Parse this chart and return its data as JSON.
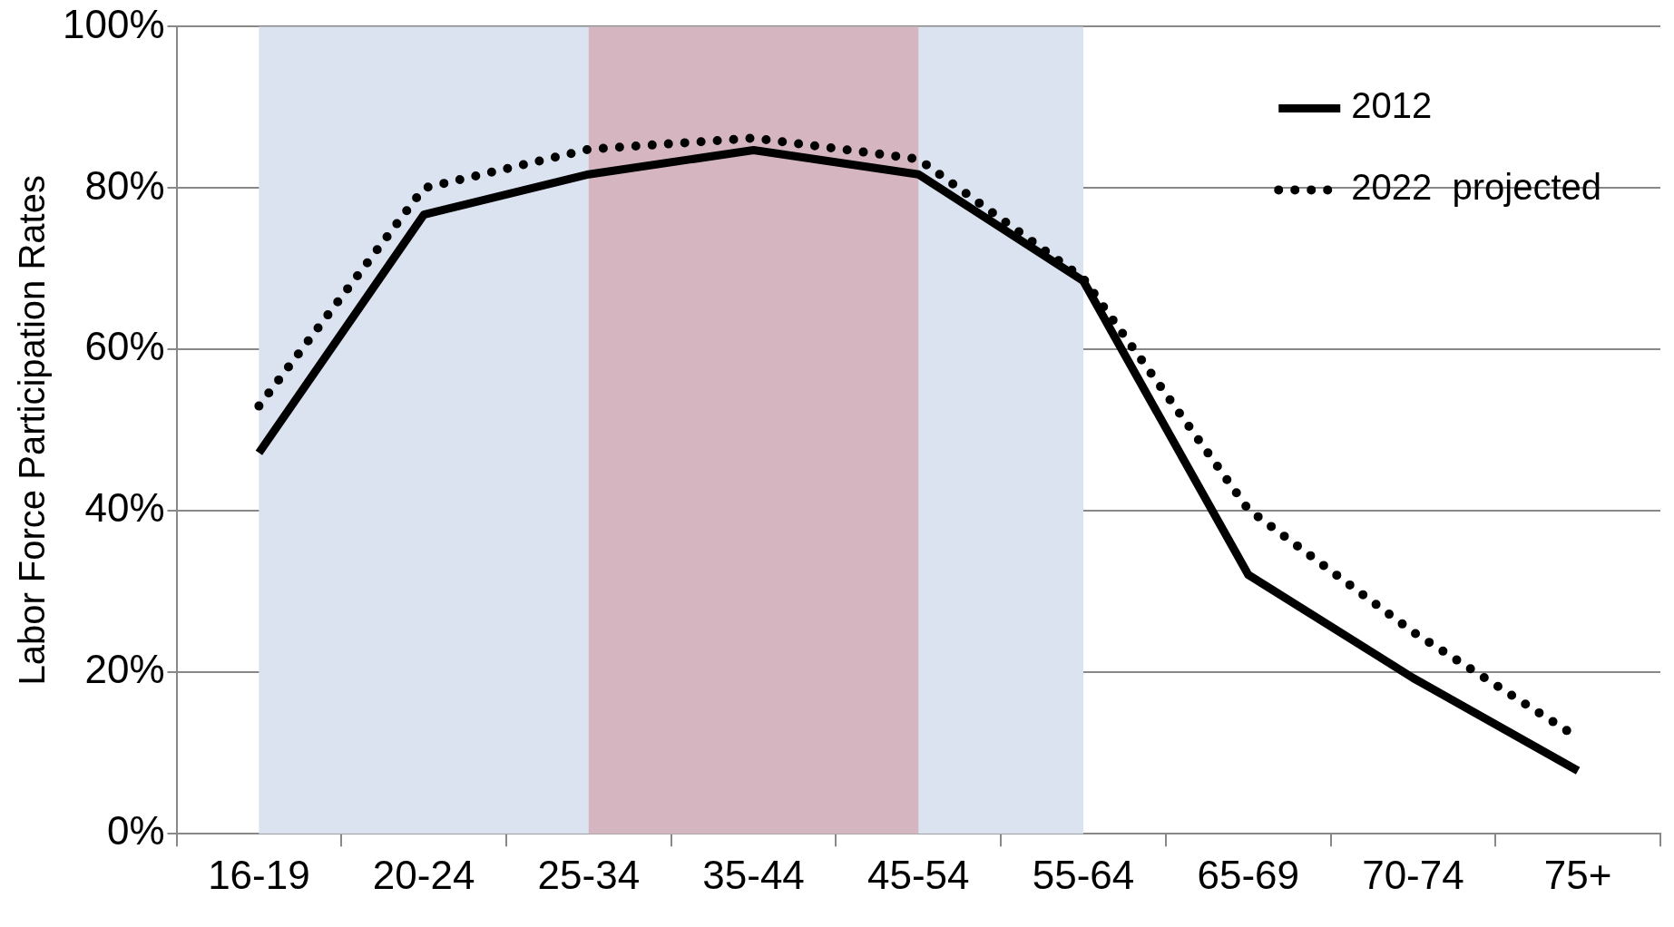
{
  "chart_data": {
    "type": "line",
    "ylabel": "Labor Force Participation Rates",
    "categories": [
      "16-19",
      "20-24",
      "25-34",
      "35-44",
      "45-54",
      "55-64",
      "65-69",
      "70-74",
      "75+"
    ],
    "series": [
      {
        "name": "2012",
        "color": "#000000",
        "line_style": "solid",
        "values": [
          47.2,
          76.7,
          81.7,
          84.7,
          81.7,
          68.5,
          32.1,
          19.3,
          7.8
        ]
      },
      {
        "name": "2022  projected",
        "color": "#000000",
        "line_style": "dotted",
        "values": [
          53.0,
          80.0,
          84.8,
          86.2,
          83.6,
          68.8,
          40.2,
          25.0,
          11.9
        ]
      }
    ],
    "ylim": [
      0,
      100
    ],
    "yticks": [
      {
        "value": 0,
        "label": "0%"
      },
      {
        "value": 20,
        "label": "20%"
      },
      {
        "value": 40,
        "label": "40%"
      },
      {
        "value": 60,
        "label": "60%"
      },
      {
        "value": 80,
        "label": "80%"
      },
      {
        "value": 100,
        "label": "100%"
      }
    ],
    "bands": [
      {
        "axis": "x",
        "from": "16-19",
        "to": "55-64",
        "color": "#dae3ef"
      },
      {
        "axis": "x",
        "from": "25-34",
        "to": "45-54",
        "color": "#d5b5c0"
      }
    ],
    "grid": "y",
    "legend": "top right",
    "marker": "none"
  }
}
